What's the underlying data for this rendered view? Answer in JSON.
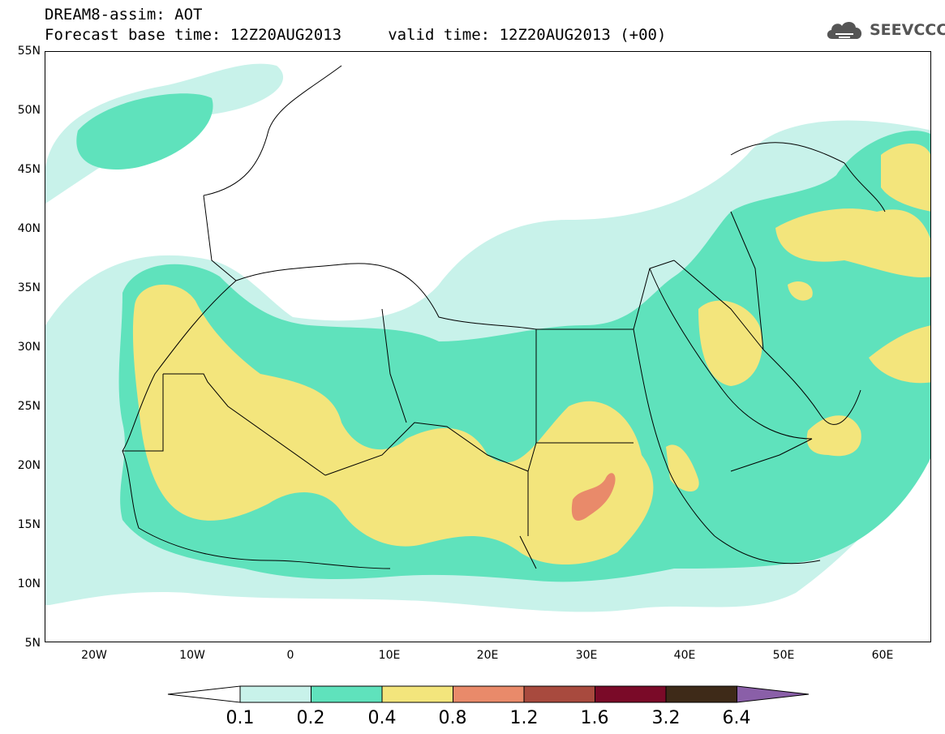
{
  "header": {
    "line1": "DREAM8-assim: AOT",
    "line2": "Forecast base time: 12Z20AUG2013     valid time: 12Z20AUG2013 (+00)"
  },
  "logo": {
    "text": "SEEVCCC",
    "icon": "cloud-icon"
  },
  "axes": {
    "lat_labels": [
      "55N",
      "50N",
      "45N",
      "40N",
      "35N",
      "30N",
      "25N",
      "20N",
      "15N",
      "10N",
      "5N"
    ],
    "lon_labels": [
      "20W",
      "10W",
      "0",
      "10E",
      "20E",
      "30E",
      "40E",
      "50E",
      "60E"
    ]
  },
  "colorbar": {
    "labels": [
      "0.1",
      "0.2",
      "0.4",
      "0.8",
      "1.2",
      "1.6",
      "3.2",
      "6.4"
    ],
    "colors": [
      "#c8f2ea",
      "#5fe2bc",
      "#f3e57c",
      "#e98a6a",
      "#a84a3e",
      "#7a0a28",
      "#3e2a18",
      "#8a5fa8"
    ]
  },
  "map_colors": {
    "ocean_bg": "#ffffff",
    "level_01": "#c8f2ea",
    "level_02": "#5fe2bc",
    "level_04": "#f3e57c",
    "level_08": "#e98a6a",
    "borders": "#000000"
  }
}
